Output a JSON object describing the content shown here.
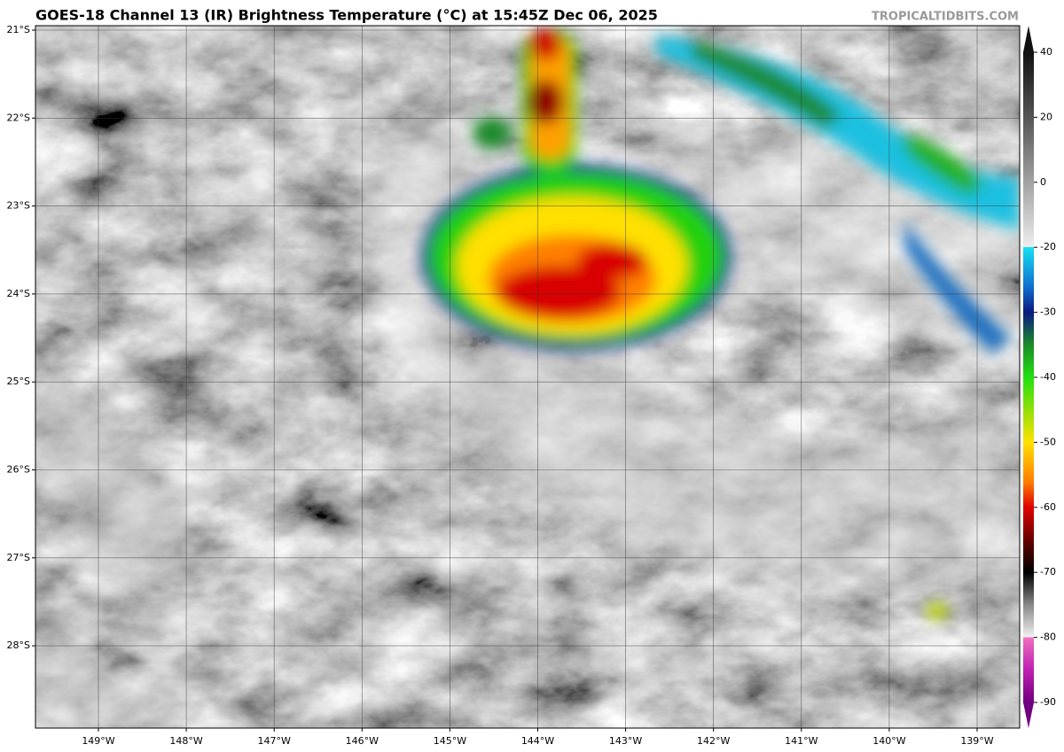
{
  "header": {
    "title": "GOES-18 Channel 13 (IR) Brightness Temperature (°C) at 15:45Z Dec 06, 2025",
    "watermark": "TROPICALTIDBITS.COM"
  },
  "map": {
    "lat_labels": [
      "21°S",
      "22°S",
      "23°S",
      "24°S",
      "25°S",
      "26°S",
      "27°S",
      "28°S"
    ],
    "lon_labels": [
      "149°W",
      "148°W",
      "147°W",
      "146°W",
      "145°W",
      "144°W",
      "143°W",
      "142°W",
      "141°W",
      "140°W",
      "139°W"
    ]
  },
  "colorbar": {
    "ticks": [
      40,
      20,
      0,
      -20,
      -30,
      -40,
      -50,
      -60,
      -70,
      -80,
      -90
    ]
  }
}
